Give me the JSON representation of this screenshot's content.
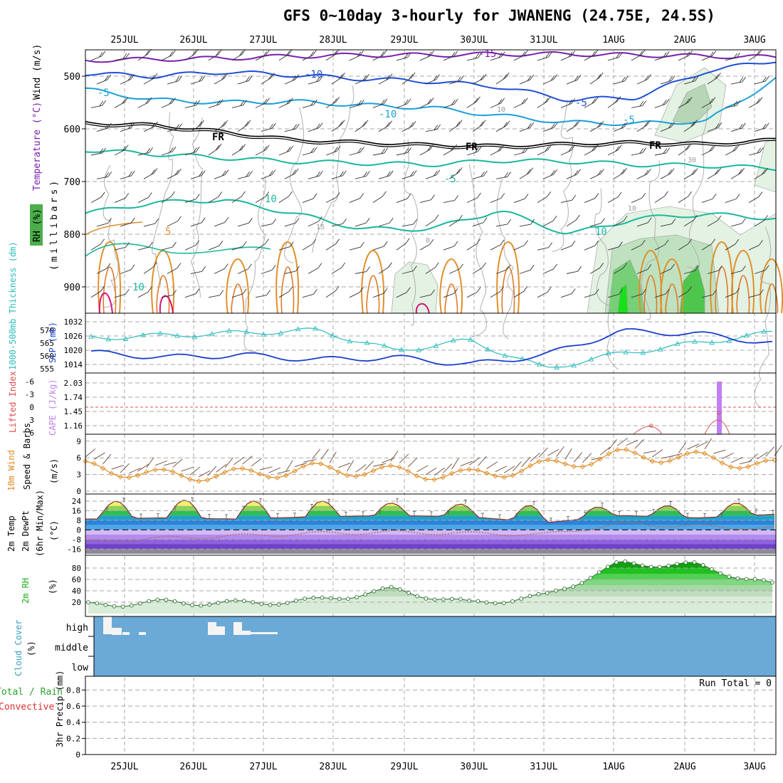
{
  "title": "GFS 0~10day 3-hourly for JWANENG (24.75E, 24.5S)",
  "dates": [
    "25JUL",
    "26JUL",
    "27JUL",
    "28JUL",
    "29JUL",
    "30JUL",
    "31JUL",
    "1AUG",
    "2AUG",
    "3AUG"
  ],
  "colors": {
    "grid": "#a8a8a8",
    "frame": "#000000",
    "slp": "#1a3ecc",
    "thickness": "#2fbcbc",
    "cape": "#c080f0",
    "lifted": "#e05050",
    "wind10": "#e08a20",
    "rh": "#1ab01a",
    "cloud": "#6ba9d6",
    "temp_upper": "#7a1fb0",
    "temp_blue": "#1f4fd6",
    "temp_cyan": "#1aa0d8",
    "temp_green": "#19b89a",
    "temp_orange": "#e0902a",
    "temp_magenta": "#d6147a"
  },
  "chart_data": [
    {
      "type": "line",
      "panel": "upper-air",
      "ylabel_parts": [
        "Wind (m/s)",
        "Temperature (°C)",
        "RH (%)",
        "(millibars)"
      ],
      "y_ticks": [
        500,
        600,
        700,
        800,
        900
      ],
      "ylim": [
        450,
        950
      ],
      "contour_labels": [
        "-15",
        "-10",
        "-5",
        "-5",
        "-10",
        "-5",
        "FR",
        "FR",
        "FR",
        "-5",
        "10",
        "5",
        "10",
        "15",
        "0",
        "10",
        "10",
        "10",
        "30"
      ],
      "isotherm_pressure_levels": [
        {
          "name": "-15",
          "color_key": "temp_upper",
          "values": [
            470,
            468,
            466,
            462,
            460,
            460,
            458,
            458,
            460,
            462,
            464
          ]
        },
        {
          "name": "-10",
          "color_key": "temp_blue",
          "values": [
            495,
            500,
            492,
            498,
            505,
            510,
            520,
            545,
            540,
            490,
            470
          ]
        },
        {
          "name": "-5",
          "color_key": "temp_cyan",
          "values": [
            525,
            545,
            550,
            548,
            555,
            560,
            575,
            588,
            590,
            585,
            505
          ]
        },
        {
          "name": "FR",
          "color_key": "frame",
          "values": [
            588,
            592,
            605,
            620,
            625,
            630,
            632,
            628,
            625,
            628,
            620
          ]
        },
        {
          "name": "5",
          "color_key": "temp_green",
          "values": [
            640,
            648,
            655,
            662,
            665,
            668,
            660,
            662,
            668,
            670,
            675
          ]
        },
        {
          "name": "10",
          "color_key": "temp_green",
          "values": [
            760,
            740,
            735,
            760,
            790,
            790,
            755,
            800,
            770,
            762,
            770
          ]
        }
      ]
    },
    {
      "type": "line",
      "panel": "slp-thickness",
      "ylabel_left": "1000-500mb Thickness (dm)",
      "ylabel_right": "SLP (mb)",
      "left_ticks": [
        555,
        560,
        565,
        570
      ],
      "right_ticks": [
        1014,
        1020,
        1026,
        1032
      ],
      "x": [
        "25JUL",
        "26JUL",
        "27JUL",
        "28JUL",
        "29JUL",
        "30JUL",
        "31JUL",
        "1AUG",
        "2AUG",
        "3AUG"
      ],
      "series": [
        {
          "name": "SLP (mb)",
          "values": [
            1019,
            1017,
            1018,
            1016,
            1017,
            1014,
            1018,
            1028,
            1027,
            1023
          ]
        },
        {
          "name": "1000-500mb Thickness (dm)",
          "values": [
            567,
            568,
            569,
            570,
            562,
            566,
            555,
            561,
            565,
            569
          ]
        }
      ]
    },
    {
      "type": "bar",
      "panel": "cape-li",
      "ylabel_left": "Lifted Index",
      "ylabel_right": "CAPE (J/kg)",
      "left_ticks": [
        6,
        3,
        0,
        -3,
        -6
      ],
      "right_ticks": [
        "1.16",
        "1.45",
        "1.74",
        "2.03"
      ],
      "categories": [
        "25JUL",
        "26JUL",
        "27JUL",
        "28JUL",
        "29JUL",
        "30JUL",
        "31JUL",
        "1AUG",
        "2AUG",
        "3AUG"
      ],
      "cape_values": [
        0,
        0,
        0,
        0,
        0,
        0,
        0,
        0,
        2.03,
        0
      ],
      "lifted_index": [
        6,
        6,
        6,
        6,
        6,
        6,
        6,
        3,
        2,
        6
      ]
    },
    {
      "type": "line",
      "panel": "wind10",
      "ylabel": "10m Wind Speed & Barbs (m/s)",
      "y_ticks": [
        0,
        3,
        6,
        9
      ],
      "x": [
        "25JUL",
        "26JUL",
        "27JUL",
        "28JUL",
        "29JUL",
        "30JUL",
        "31JUL",
        "1AUG",
        "2AUG",
        "3AUG"
      ],
      "series": [
        {
          "name": "Wind speed",
          "values": [
            4.3,
            2.8,
            3.0,
            4.0,
            3.5,
            2.8,
            4.5,
            6.5,
            6.0,
            4.5
          ]
        }
      ]
    },
    {
      "type": "area",
      "panel": "temperature",
      "ylabel": "2m Temp 2m DewPt (6hr Min/Max) (°C)",
      "y_ticks": [
        24,
        16,
        8,
        0,
        -8,
        -16
      ],
      "x": [
        "25JUL",
        "26JUL",
        "27JUL",
        "28JUL",
        "29JUL",
        "30JUL",
        "31JUL",
        "1AUG",
        "2AUG",
        "3AUG"
      ],
      "series": [
        {
          "name": "2m Temp max",
          "values": [
            23,
            25,
            24,
            24,
            22,
            21,
            20,
            18,
            21,
            23
          ]
        },
        {
          "name": "2m Temp min",
          "values": [
            8,
            9,
            8,
            10,
            11,
            10,
            5,
            11,
            9,
            12
          ]
        },
        {
          "name": "2m DewPt",
          "values": [
            -10,
            -7,
            -5,
            -3,
            -2,
            -3,
            -4,
            5,
            3,
            1
          ]
        }
      ]
    },
    {
      "type": "area",
      "panel": "rh",
      "ylabel": "2m RH (%)",
      "y_ticks": [
        20,
        40,
        60,
        80
      ],
      "x": [
        "25JUL",
        "26JUL",
        "27JUL",
        "28JUL",
        "29JUL",
        "30JUL",
        "31JUL",
        "1AUG",
        "2AUG",
        "3AUG"
      ],
      "series": [
        {
          "name": "2m RH",
          "values": [
            15,
            20,
            18,
            23,
            42,
            18,
            30,
            88,
            85,
            50
          ]
        }
      ]
    },
    {
      "type": "bar",
      "panel": "cloud",
      "ylabel": "Cloud Cover (%)",
      "levels": [
        "high",
        "middle",
        "low"
      ],
      "categories": [
        "25JUL",
        "26JUL",
        "27JUL",
        "28JUL",
        "29JUL",
        "30JUL",
        "31JUL",
        "1AUG",
        "2AUG",
        "3AUG"
      ],
      "high_cloud": [
        80,
        0,
        60,
        0,
        0,
        0,
        0,
        0,
        0,
        0
      ]
    },
    {
      "type": "bar",
      "panel": "precip",
      "ylabel_parts": [
        "Total / Rain",
        "Convective",
        "3hr Precip (mm)"
      ],
      "y_ticks": [
        "0",
        "0.2",
        "0.4",
        "0.6",
        "0.8"
      ],
      "ylim": [
        0,
        0.9
      ],
      "run_total": "Run Total = 0",
      "categories": [
        "25JUL",
        "26JUL",
        "27JUL",
        "28JUL",
        "29JUL",
        "30JUL",
        "31JUL",
        "1AUG",
        "2AUG",
        "3AUG"
      ],
      "values": [
        0,
        0,
        0,
        0,
        0,
        0,
        0,
        0,
        0,
        0
      ]
    }
  ]
}
